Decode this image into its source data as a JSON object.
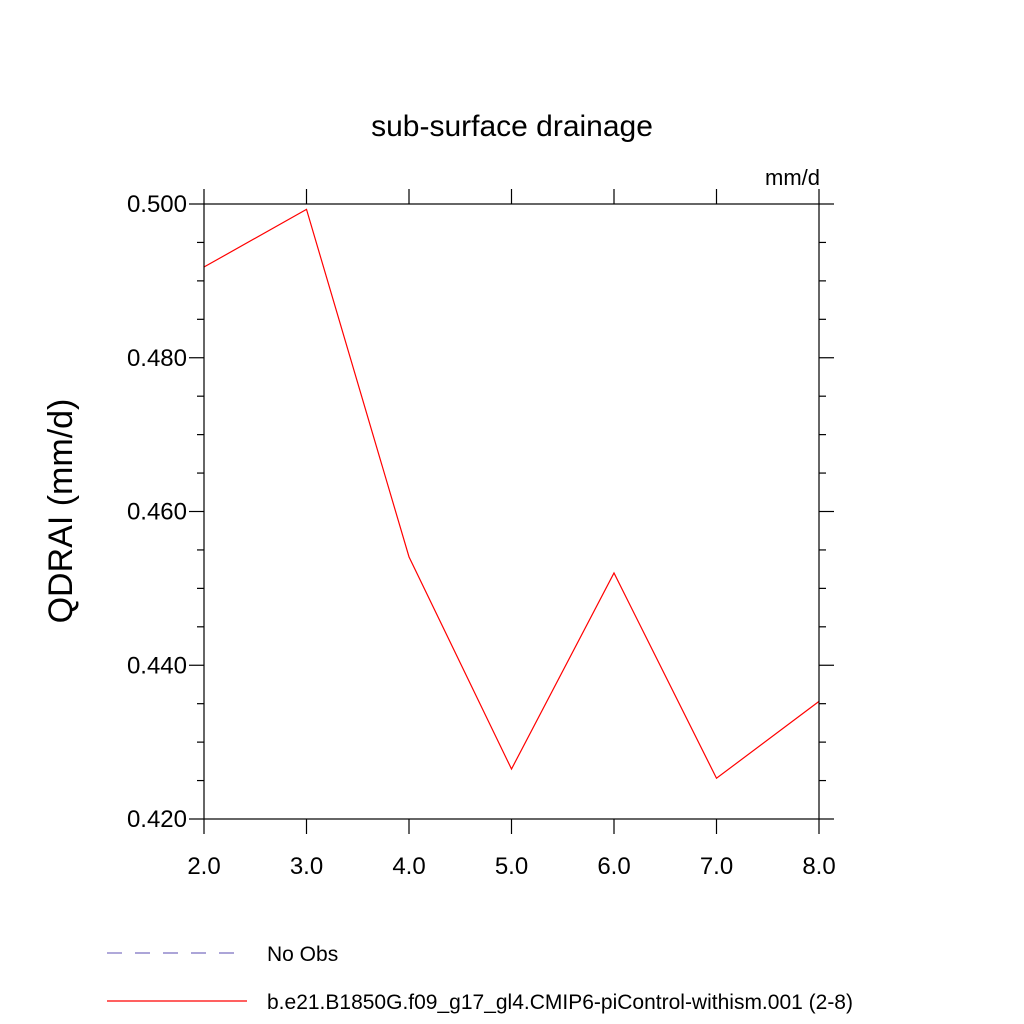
{
  "chart_data": {
    "type": "line",
    "title": "sub-surface drainage",
    "units_label": "mm/d",
    "ylabel": "QDRAI  (mm/d)",
    "xlabel": "",
    "xlim": [
      2.0,
      8.0
    ],
    "ylim": [
      0.42,
      0.5
    ],
    "x_ticks": [
      2.0,
      3.0,
      4.0,
      5.0,
      6.0,
      7.0,
      8.0
    ],
    "x_tick_labels": [
      "2.0",
      "3.0",
      "4.0",
      "5.0",
      "6.0",
      "7.0",
      "8.0"
    ],
    "y_ticks": [
      0.42,
      0.44,
      0.46,
      0.48,
      0.5
    ],
    "y_tick_labels": [
      "0.420",
      "0.440",
      "0.460",
      "0.480",
      "0.500"
    ],
    "y_minor_step": 0.005,
    "grid": false,
    "legend_placement": "bottom",
    "x": [
      2.0,
      3.0,
      4.0,
      5.0,
      6.0,
      7.0,
      8.0
    ],
    "series": [
      {
        "name": "b.e21.B1850G.f09_g17_gl4.CMIP6-piControl-withism.001 (2-8)",
        "color": "#ff0000",
        "dash": "solid",
        "values": [
          0.4918,
          0.4993,
          0.4541,
          0.4265,
          0.452,
          0.4253,
          0.4353
        ]
      }
    ],
    "legend": [
      {
        "label": "No Obs",
        "color": "#7a6fc0",
        "dash": "dashed"
      },
      {
        "label": "b.e21.B1850G.f09_g17_gl4.CMIP6-piControl-withism.001 (2-8)",
        "color": "#ff0000",
        "dash": "solid"
      }
    ]
  }
}
